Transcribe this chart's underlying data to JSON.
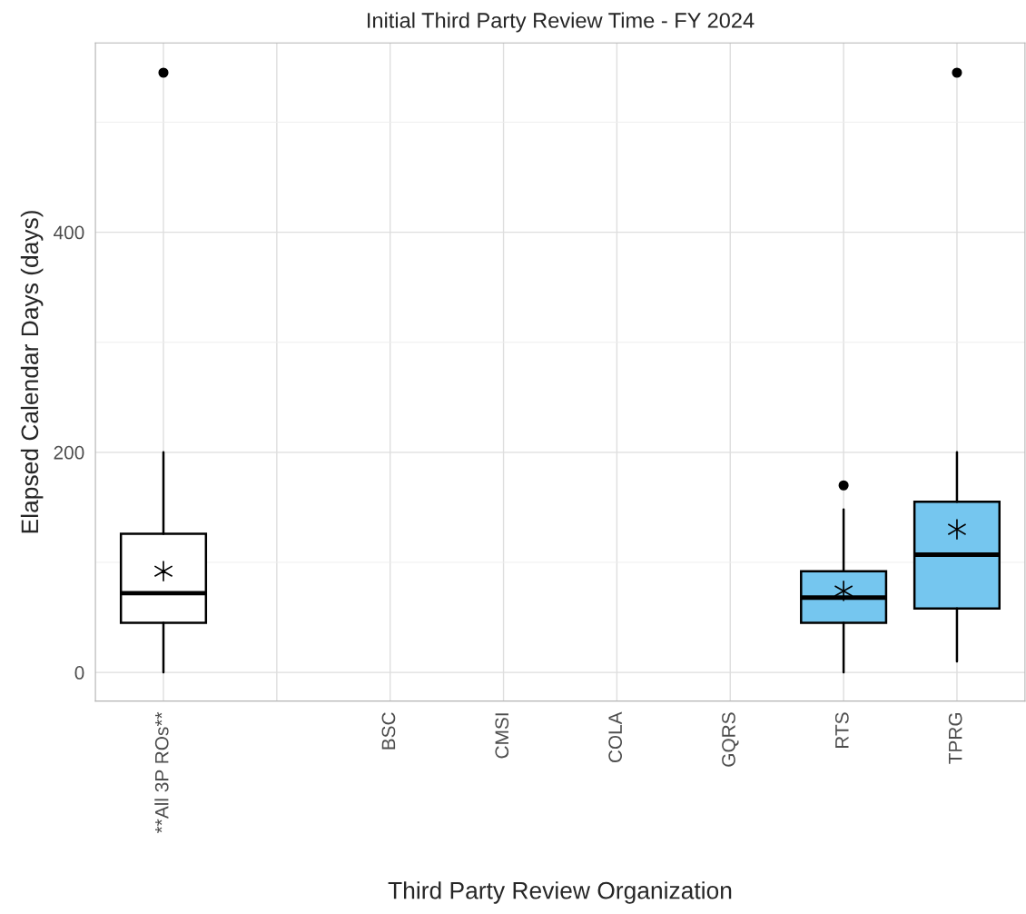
{
  "chart_data": {
    "type": "box",
    "title": "Initial Third Party Review Time - FY 2024",
    "xlabel": "Third Party Review Organization",
    "ylabel": "Elapsed Calendar Days (days)",
    "categories": [
      "**All 3P ROs**",
      null,
      "BSC",
      "CMSI",
      "COLA",
      "GQRS",
      "RTS",
      "TPRG"
    ],
    "boxes": [
      {
        "low": 0,
        "q1": 45,
        "median": 72,
        "q3": 126,
        "high": 200,
        "mean": 92,
        "outliers": [
          545
        ]
      },
      null,
      null,
      null,
      null,
      null,
      {
        "low": 0,
        "q1": 45,
        "median": 68,
        "q3": 92,
        "high": 148,
        "mean": 74,
        "outliers": [
          170
        ]
      },
      {
        "low": 10,
        "q1": 58,
        "median": 107,
        "q3": 155,
        "high": 200,
        "mean": 130,
        "outliers": [
          545
        ]
      }
    ],
    "colors": [
      "#ffffff",
      null,
      null,
      null,
      null,
      null,
      "#75c6ef",
      "#75c6ef"
    ],
    "ylim": [
      -26,
      572
    ],
    "yticks": [
      0,
      {
        "value": 100,
        "label": null
      },
      200,
      {
        "value": 300,
        "label": null
      },
      400,
      {
        "value": 500,
        "label": null
      }
    ],
    "grid": true
  }
}
